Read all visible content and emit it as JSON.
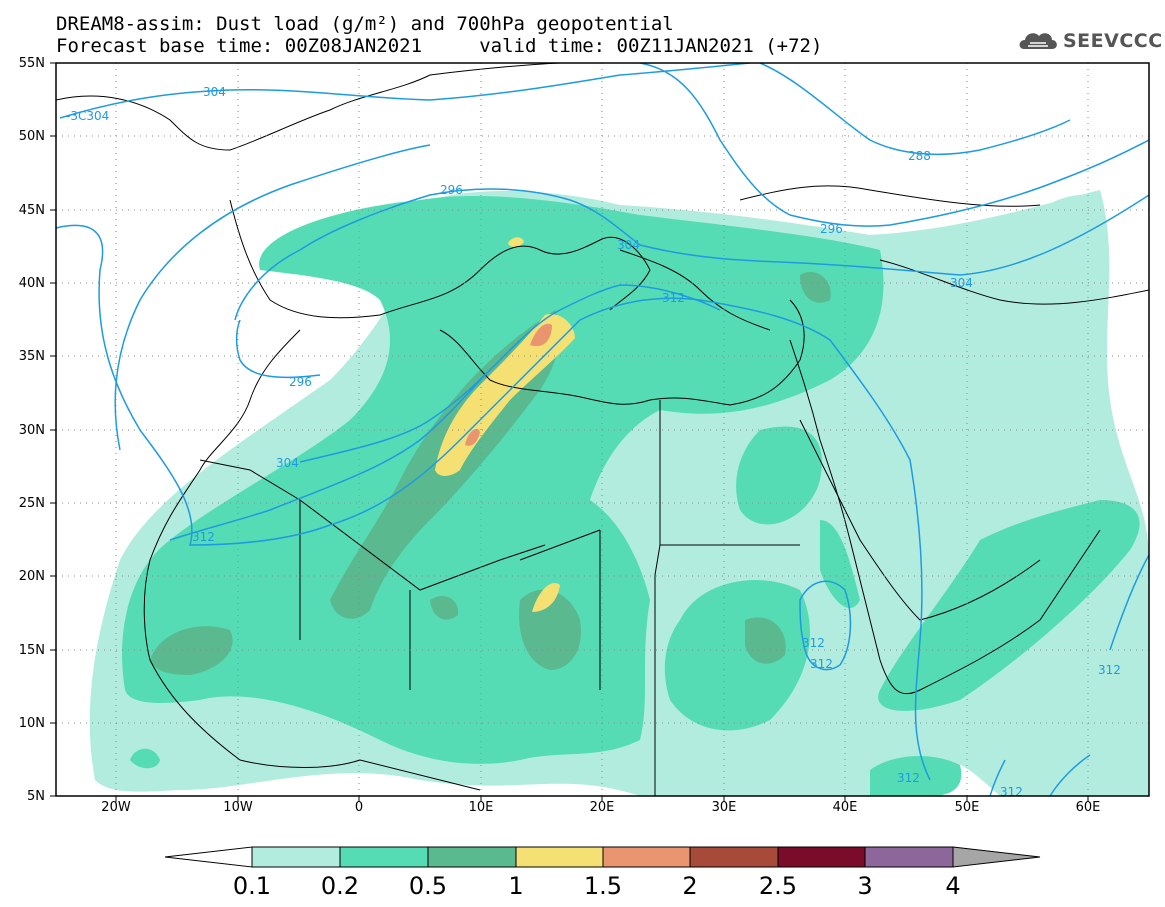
{
  "title_line1": "DREAM8-assim: Dust load (g/m²) and 700hPa geopotential",
  "title_line2": "Forecast base time: 00Z08JAN2021     valid time: 00Z11JAN2021 (+72)",
  "logo_text": "SEEVCCC",
  "latitude_labels": [
    "55N",
    "50N",
    "45N",
    "40N",
    "35N",
    "30N",
    "25N",
    "20N",
    "15N",
    "10N",
    "5N"
  ],
  "longitude_labels": [
    "20W",
    "10W",
    "0",
    "10E",
    "20E",
    "30E",
    "40E",
    "50E",
    "60E"
  ],
  "contour_labels": [
    "304",
    "-3C304",
    "296",
    "304",
    "288",
    "296",
    "304",
    "312",
    "296",
    "304",
    "312",
    "312",
    "312",
    "312",
    "312",
    "312"
  ],
  "colorbar": {
    "levels": [
      "0.1",
      "0.2",
      "0.5",
      "1",
      "1.5",
      "2",
      "2.5",
      "3",
      "4"
    ],
    "colors": [
      "#ffffff",
      "#b2ecdf",
      "#56dcb5",
      "#5ab98f",
      "#f5e074",
      "#e99670",
      "#a84a3a",
      "#7a0c2a",
      "#8d669b",
      "#a6a6a6"
    ]
  },
  "colors": {
    "contour": "#1e9be0",
    "dust_0_1": "#b2ecdf",
    "dust_0_2": "#56dcb5",
    "dust_0_5": "#5ab98f",
    "dust_1": "#f5e074",
    "dust_1_5": "#e99670",
    "dust_2": "#a84a3a"
  }
}
